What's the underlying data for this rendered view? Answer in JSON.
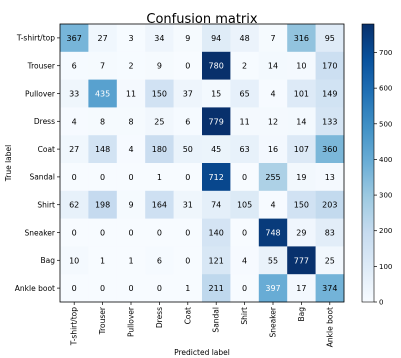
{
  "chart_data": {
    "type": "heatmap",
    "title": "Confusion matrix",
    "xlabel": "Predicted label",
    "ylabel": "True label",
    "rows": [
      "T-shirt/top",
      "Trouser",
      "Pullover",
      "Dress",
      "Coat",
      "Sandal",
      "Shirt",
      "Sneaker",
      "Bag",
      "Ankle boot"
    ],
    "columns": [
      "T-shirt/top",
      "Trouser",
      "Pullover",
      "Dress",
      "Coat",
      "Sandal",
      "Shirt",
      "Sneaker",
      "Bag",
      "Ankle boot"
    ],
    "values": [
      [
        367,
        27,
        3,
        34,
        9,
        94,
        48,
        7,
        316,
        95
      ],
      [
        6,
        7,
        2,
        9,
        0,
        780,
        2,
        14,
        10,
        170
      ],
      [
        33,
        435,
        11,
        150,
        37,
        15,
        65,
        4,
        101,
        149
      ],
      [
        4,
        8,
        8,
        25,
        6,
        779,
        11,
        12,
        14,
        133
      ],
      [
        27,
        148,
        4,
        180,
        50,
        45,
        63,
        16,
        107,
        360
      ],
      [
        0,
        0,
        0,
        1,
        0,
        712,
        0,
        255,
        19,
        13
      ],
      [
        62,
        198,
        9,
        164,
        31,
        74,
        105,
        4,
        150,
        203
      ],
      [
        0,
        0,
        0,
        0,
        0,
        140,
        0,
        748,
        29,
        83
      ],
      [
        10,
        1,
        1,
        6,
        0,
        121,
        4,
        55,
        777,
        25
      ],
      [
        0,
        0,
        0,
        0,
        1,
        211,
        0,
        397,
        17,
        374
      ]
    ],
    "colormap": "Blues",
    "vmin": 0,
    "vmax": 780,
    "colorbar_ticks": [
      0,
      100,
      200,
      300,
      400,
      500,
      600,
      700
    ],
    "grid": false
  }
}
